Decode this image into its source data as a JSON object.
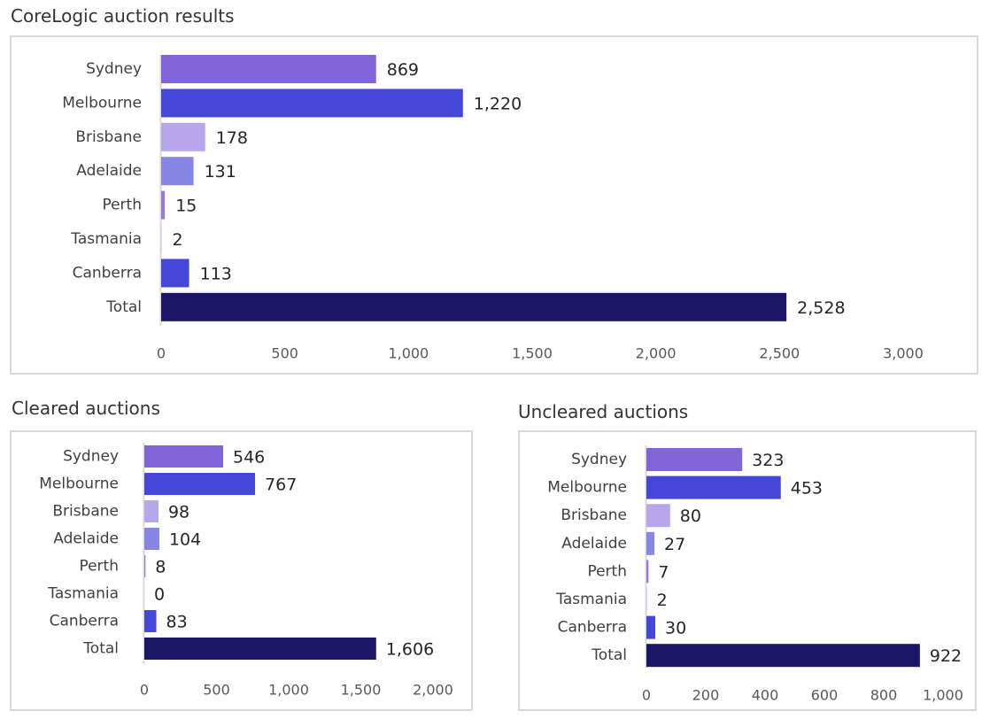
{
  "colors": {
    "sydney": "#8064d8",
    "melbourne": "#4547d8",
    "brisbane": "#b8a6eb",
    "adelaide": "#8786e6",
    "perth": "#9a7ad8",
    "tasmania": "#c4b6ee",
    "canberra": "#4547d8",
    "total": "#1b1766",
    "axis": "#d9d9d9"
  },
  "chart_data": [
    {
      "type": "bar",
      "orientation": "horizontal",
      "title": "CoreLogic auction results",
      "categories": [
        "Sydney",
        "Melbourne",
        "Brisbane",
        "Adelaide",
        "Perth",
        "Tasmania",
        "Canberra",
        "Total"
      ],
      "values": [
        869,
        1220,
        178,
        131,
        15,
        2,
        113,
        2528
      ],
      "value_labels": [
        "869",
        "1,220",
        "178",
        "131",
        "15",
        "2",
        "113",
        "2,528"
      ],
      "xlim": [
        0,
        3000
      ],
      "ticks": [
        "0",
        "500",
        "1,000",
        "1,500",
        "2,000",
        "2,500",
        "3,000"
      ],
      "grid": false,
      "xlabel": "",
      "ylabel": ""
    },
    {
      "type": "bar",
      "orientation": "horizontal",
      "title": "Cleared auctions",
      "categories": [
        "Sydney",
        "Melbourne",
        "Brisbane",
        "Adelaide",
        "Perth",
        "Tasmania",
        "Canberra",
        "Total"
      ],
      "values": [
        546,
        767,
        98,
        104,
        8,
        0,
        83,
        1606
      ],
      "value_labels": [
        "546",
        "767",
        "98",
        "104",
        "8",
        "0",
        "83",
        "1,606"
      ],
      "xlim": [
        0,
        2000
      ],
      "ticks": [
        "0",
        "500",
        "1,000",
        "1,500",
        "2,000"
      ],
      "grid": false,
      "xlabel": "",
      "ylabel": ""
    },
    {
      "type": "bar",
      "orientation": "horizontal",
      "title": "Uncleared auctions",
      "categories": [
        "Sydney",
        "Melbourne",
        "Brisbane",
        "Adelaide",
        "Perth",
        "Tasmania",
        "Canberra",
        "Total"
      ],
      "values": [
        323,
        453,
        80,
        27,
        7,
        2,
        30,
        922
      ],
      "value_labels": [
        "323",
        "453",
        "80",
        "27",
        "7",
        "2",
        "30",
        "922"
      ],
      "xlim": [
        0,
        1000
      ],
      "ticks": [
        "0",
        "200",
        "400",
        "600",
        "800",
        "1,000"
      ],
      "grid": false,
      "xlabel": "",
      "ylabel": ""
    }
  ]
}
